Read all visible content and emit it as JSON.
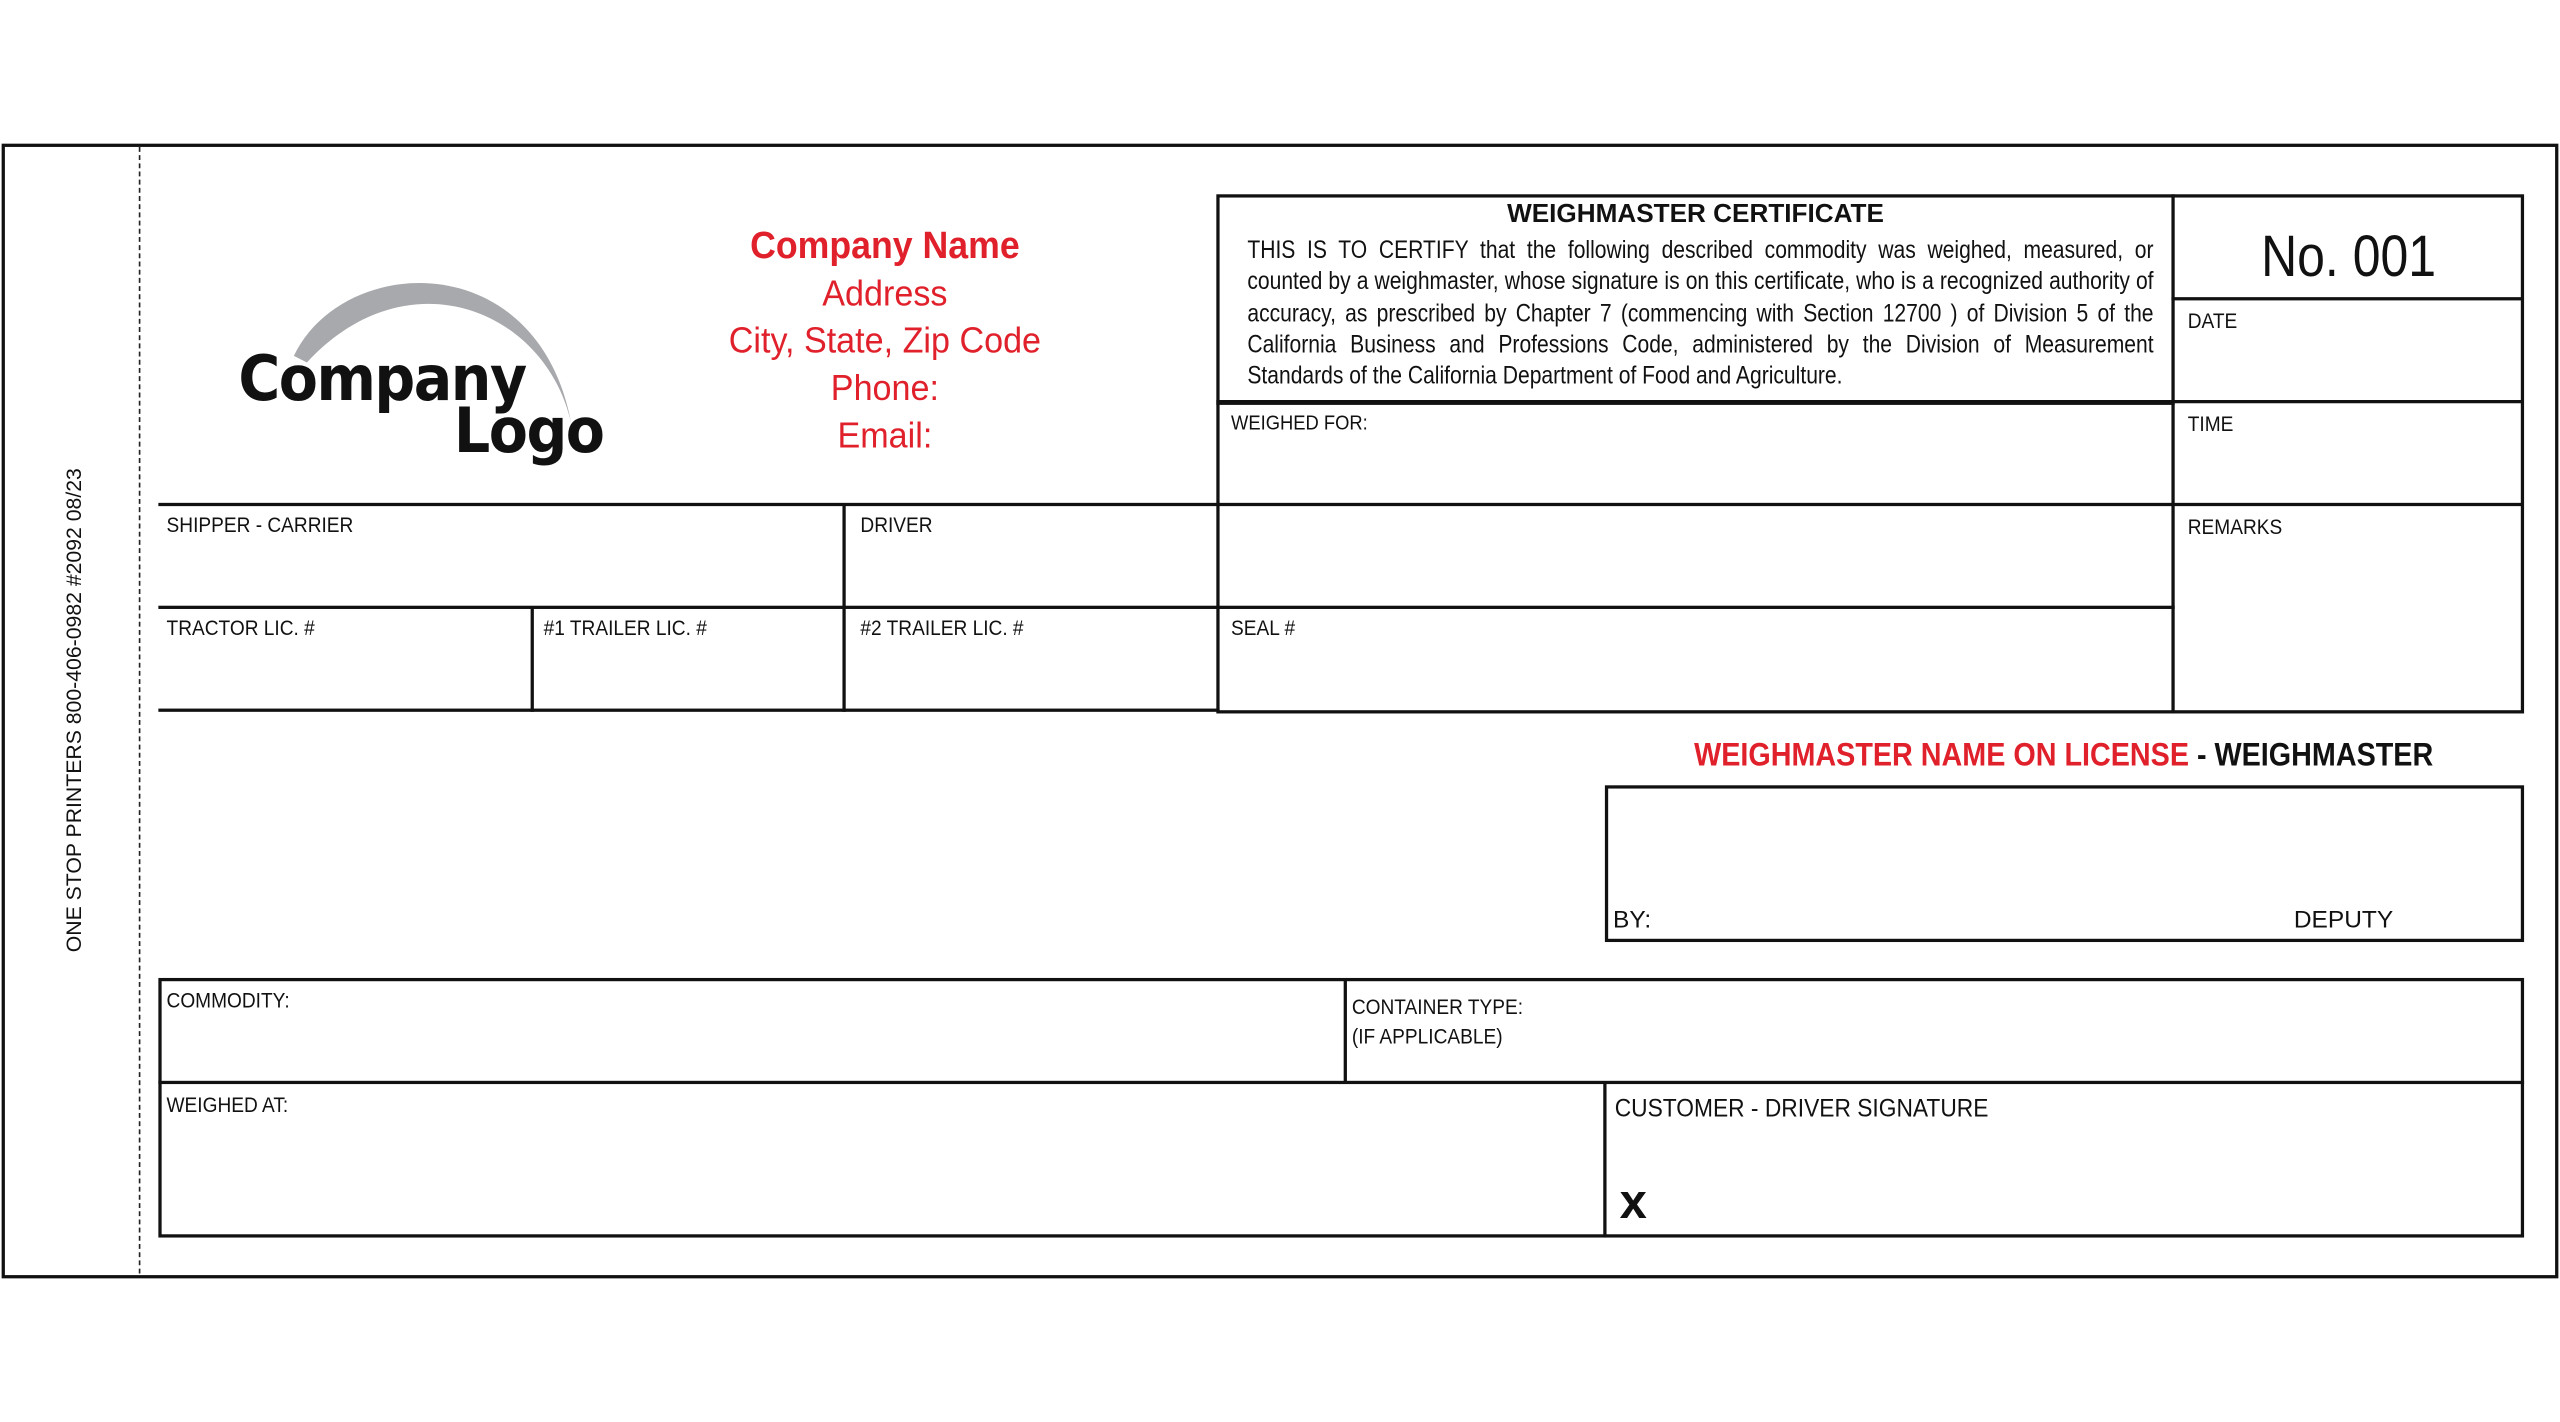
{
  "side_text": "ONE STOP PRINTERS 800-406-0982 #2092 08/23",
  "logo": {
    "line1": "Company",
    "line2": "Logo"
  },
  "company": {
    "name": "Company Name",
    "address": "Address",
    "city": "City, State, Zip Code",
    "phone": "Phone:",
    "email": "Email:"
  },
  "certificate": {
    "title": "WEIGHMASTER CERTIFICATE",
    "body": "THIS IS TO CERTIFY that the following described commodity was weighed, measured, or counted by a weighmaster, whose signature is on this certificate, who is a recognized authority of accuracy, as prescribed by Chapter 7 (commencing with Section 12700 ) of Division 5 of the California Business and Professions Code, administered by the Division of Measurement Standards of the California Department of Food and Agriculture."
  },
  "number": "No. 001",
  "fields": {
    "date": "DATE",
    "time": "TIME",
    "remarks": "REMARKS",
    "weighed_for": "WEIGHED FOR:",
    "shipper": "SHIPPER - CARRIER",
    "driver": "DRIVER",
    "tractor": "TRACTOR LIC. #",
    "trailer1": "#1 TRAILER LIC. #",
    "trailer2": "#2 TRAILER LIC. #",
    "seal": "SEAL #",
    "commodity": "COMMODITY:",
    "container": "CONTAINER TYPE:",
    "container_note": "(IF APPLICABLE)",
    "weighed_at": "WEIGHED AT:",
    "signature": "CUSTOMER - DRIVER SIGNATURE",
    "signature_mark": "x"
  },
  "weighmaster": {
    "name_label": "WEIGHMASTER NAME ON LICENSE",
    "suffix": " - WEIGHMASTER",
    "by": "BY:",
    "deputy": "DEPUTY"
  },
  "colors": {
    "accent": "#e0202a",
    "logo_arc": "#a7a9ac"
  }
}
